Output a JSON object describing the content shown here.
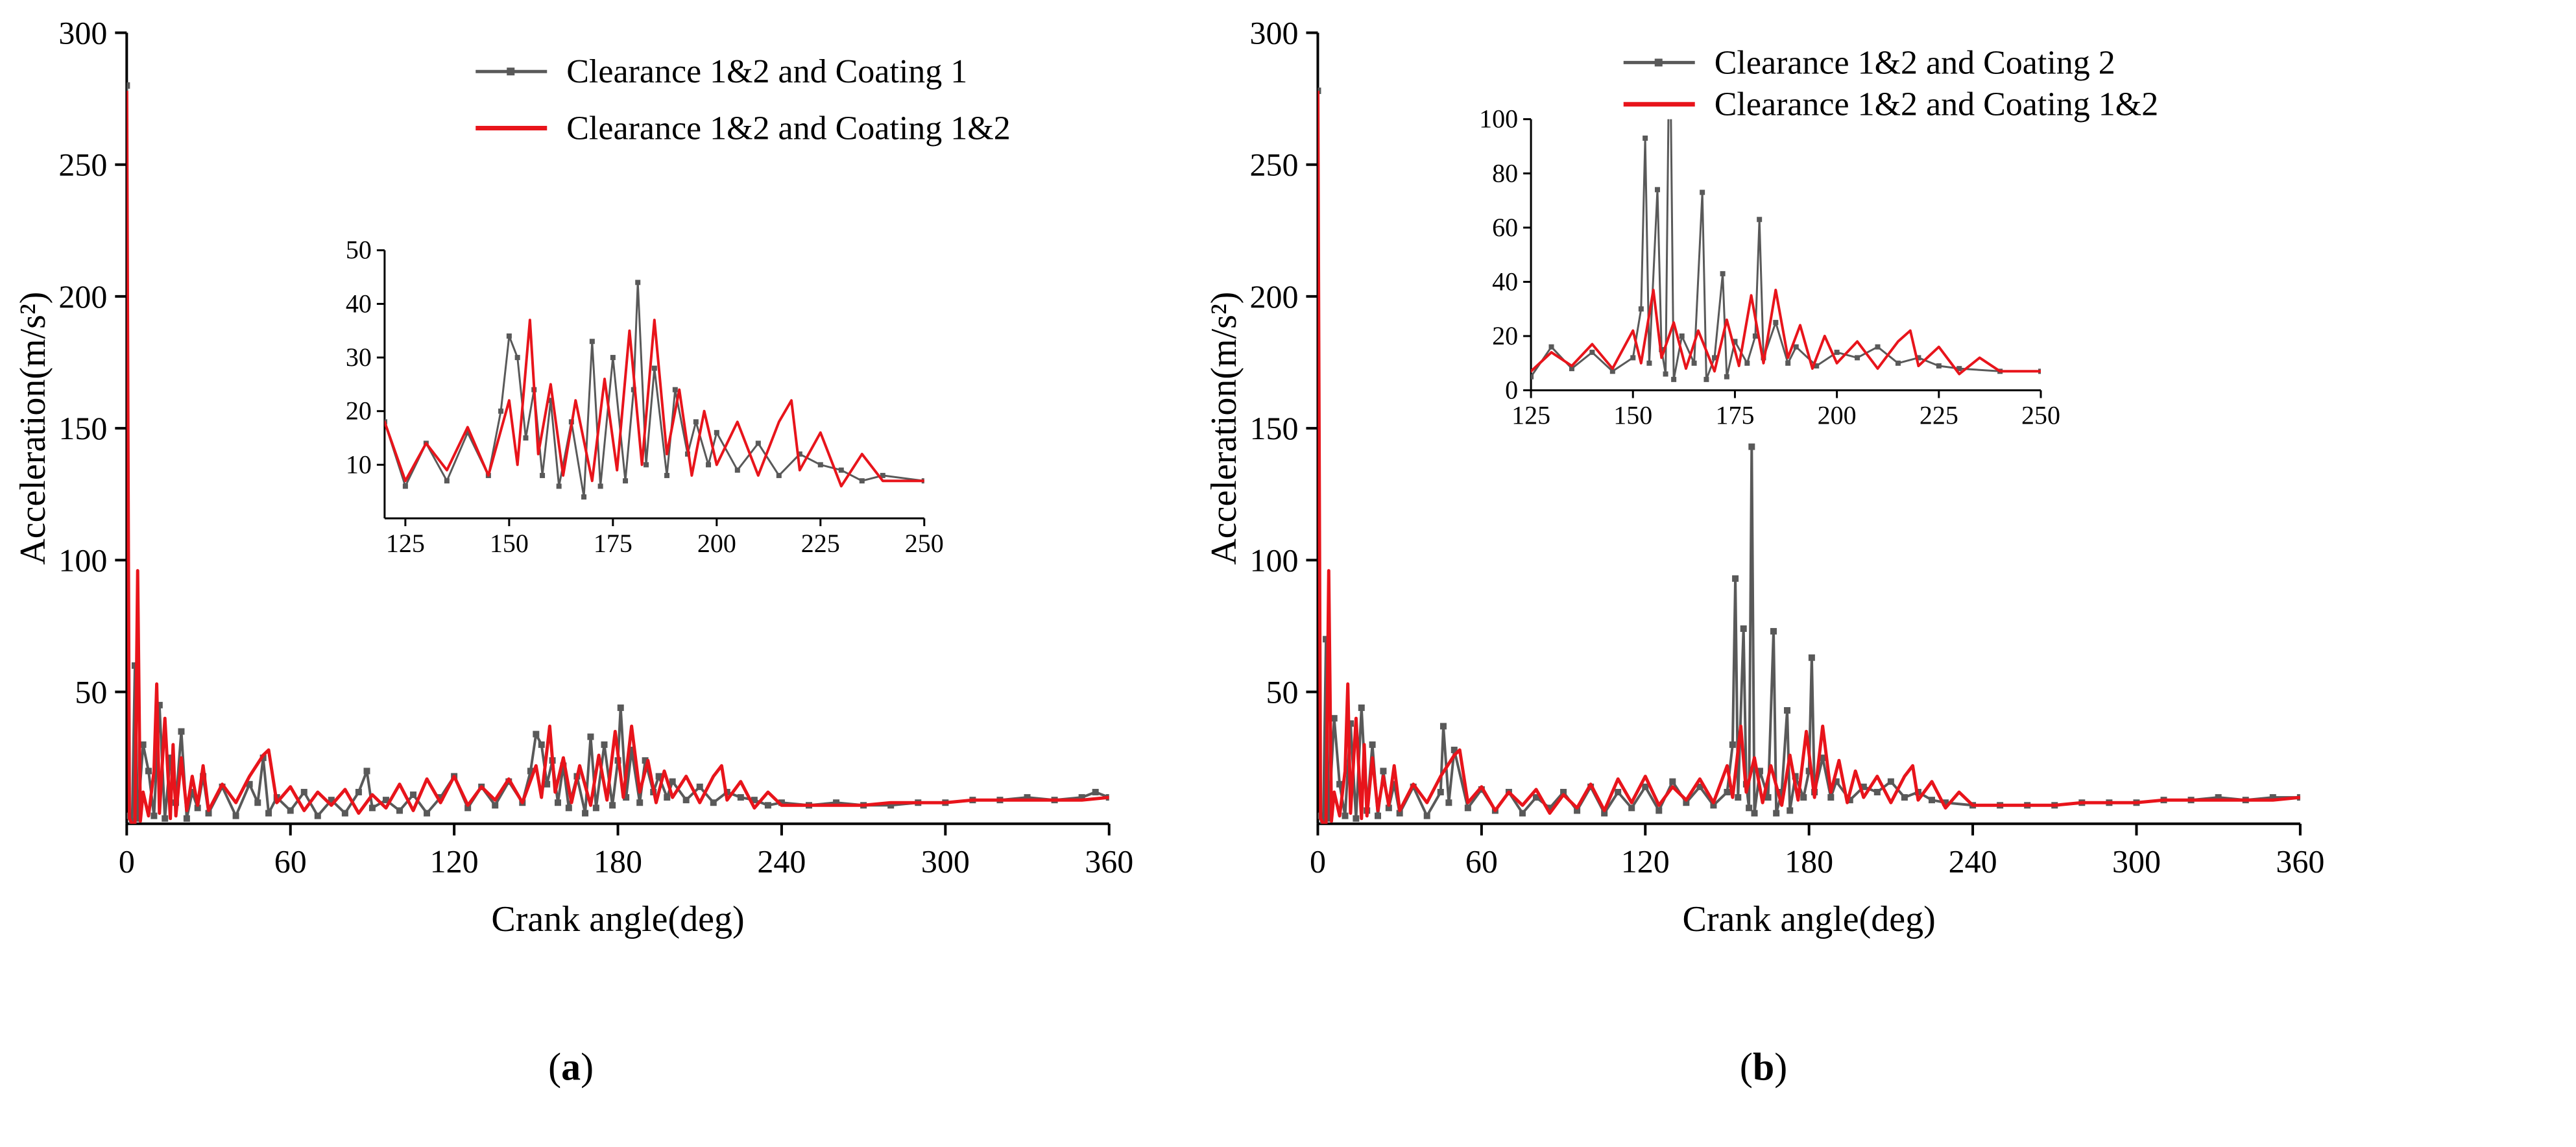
{
  "colors": {
    "gray_series": "#595959",
    "red_series": "#e8141b",
    "axis": "#000000"
  },
  "chart_data": [
    {
      "type": "line",
      "panel_label": "(a)",
      "panel_letter": "a",
      "xlabel": "Crank angle(deg)",
      "ylabel": "Acceleration(m/s²)",
      "xlim": [
        0,
        360
      ],
      "ylim": [
        0,
        300
      ],
      "xticks": [
        0,
        60,
        120,
        180,
        240,
        300,
        360
      ],
      "yticks": [
        50,
        100,
        150,
        200,
        250,
        300
      ],
      "legend": [
        "Clearance 1&2 and Coating 1",
        "Clearance 1&2 and Coating 1&2"
      ],
      "series": [
        {
          "name": "Clearance 1&2 and Coating 1",
          "color": "#595959",
          "marker": "square",
          "x": [
            0,
            1,
            2,
            3,
            4,
            6,
            8,
            10,
            12,
            14,
            16,
            18,
            20,
            22,
            24,
            26,
            28,
            30,
            35,
            40,
            45,
            48,
            50,
            52,
            55,
            60,
            65,
            70,
            75,
            80,
            85,
            88,
            90,
            95,
            100,
            105,
            110,
            115,
            120,
            125,
            130,
            135,
            140,
            145,
            148,
            150,
            152,
            154,
            156,
            158,
            160,
            162,
            165,
            168,
            170,
            172,
            175,
            178,
            180,
            181,
            183,
            185,
            188,
            190,
            193,
            195,
            198,
            200,
            205,
            210,
            215,
            220,
            225,
            230,
            235,
            240,
            250,
            260,
            270,
            280,
            290,
            300,
            310,
            320,
            330,
            340,
            350,
            355,
            360
          ],
          "values": [
            280,
            3,
            1,
            60,
            2,
            30,
            20,
            3,
            45,
            2,
            25,
            8,
            35,
            2,
            12,
            6,
            18,
            4,
            14,
            3,
            15,
            8,
            25,
            4,
            10,
            5,
            12,
            3,
            9,
            4,
            12,
            20,
            6,
            9,
            5,
            11,
            4,
            10,
            18,
            6,
            14,
            7,
            16,
            8,
            20,
            34,
            30,
            15,
            24,
            8,
            22,
            6,
            18,
            4,
            33,
            6,
            30,
            7,
            24,
            44,
            10,
            28,
            8,
            24,
            12,
            18,
            10,
            16,
            9,
            14,
            8,
            12,
            10,
            9,
            7,
            8,
            7,
            8,
            7,
            7,
            8,
            8,
            9,
            9,
            10,
            9,
            10,
            12,
            10
          ]
        },
        {
          "name": "Clearance 1&2 and Coating 1&2",
          "color": "#e8141b",
          "marker": "none",
          "x": [
            0,
            1,
            2,
            3,
            4,
            5,
            6,
            8,
            10,
            11,
            12,
            14,
            16,
            17,
            18,
            20,
            22,
            24,
            26,
            28,
            30,
            35,
            40,
            45,
            50,
            52,
            55,
            60,
            65,
            70,
            75,
            80,
            85,
            90,
            95,
            100,
            105,
            110,
            115,
            120,
            125,
            130,
            135,
            140,
            145,
            150,
            152,
            155,
            157,
            160,
            163,
            166,
            170,
            173,
            176,
            179,
            182,
            185,
            188,
            191,
            194,
            197,
            200,
            205,
            210,
            215,
            218,
            220,
            225,
            230,
            235,
            240,
            250,
            260,
            270,
            280,
            290,
            300,
            310,
            320,
            330,
            340,
            350,
            360
          ],
          "values": [
            278,
            2,
            0,
            0,
            96,
            1,
            12,
            3,
            20,
            53,
            4,
            40,
            2,
            30,
            3,
            25,
            5,
            18,
            7,
            22,
            5,
            15,
            8,
            18,
            26,
            28,
            8,
            14,
            5,
            12,
            7,
            13,
            4,
            11,
            6,
            15,
            5,
            17,
            8,
            18,
            7,
            14,
            9,
            17,
            8,
            22,
            10,
            37,
            12,
            25,
            8,
            22,
            7,
            26,
            9,
            35,
            10,
            37,
            12,
            24,
            8,
            20,
            10,
            18,
            8,
            18,
            22,
            9,
            16,
            6,
            12,
            7,
            7,
            7,
            7,
            8,
            8,
            8,
            9,
            9,
            9,
            9,
            9,
            10
          ]
        }
      ],
      "inset": {
        "xlim": [
          120,
          250
        ],
        "ylim": [
          0,
          50
        ],
        "xticks": [
          125,
          150,
          175,
          200,
          225,
          250
        ],
        "yticks": [
          10,
          20,
          30,
          40,
          50
        ]
      }
    },
    {
      "type": "line",
      "panel_label": "(b)",
      "panel_letter": "b",
      "xlabel": "Crank angle(deg)",
      "ylabel": "Acceleration(m/s²)",
      "xlim": [
        0,
        360
      ],
      "ylim": [
        0,
        300
      ],
      "xticks": [
        0,
        60,
        120,
        180,
        240,
        300,
        360
      ],
      "yticks": [
        50,
        100,
        150,
        200,
        250,
        300
      ],
      "legend": [
        "Clearance 1&2 and Coating 2",
        "Clearance 1&2 and Coating 1&2"
      ],
      "series": [
        {
          "name": "Clearance 1&2 and Coating 2",
          "color": "#595959",
          "marker": "square",
          "x": [
            0,
            1,
            2,
            3,
            4,
            6,
            8,
            10,
            12,
            14,
            16,
            18,
            20,
            22,
            24,
            26,
            28,
            30,
            35,
            40,
            45,
            46,
            48,
            50,
            55,
            60,
            65,
            70,
            75,
            80,
            85,
            90,
            95,
            100,
            105,
            110,
            115,
            120,
            125,
            130,
            135,
            140,
            145,
            150,
            152,
            153,
            154,
            156,
            157,
            158,
            159,
            160,
            162,
            165,
            167,
            168,
            170,
            172,
            173,
            175,
            178,
            180,
            181,
            182,
            185,
            188,
            190,
            195,
            200,
            205,
            210,
            215,
            220,
            225,
            230,
            240,
            250,
            260,
            270,
            280,
            290,
            300,
            310,
            320,
            330,
            340,
            350,
            360
          ],
          "values": [
            278,
            3,
            1,
            70,
            2,
            40,
            15,
            3,
            38,
            2,
            44,
            5,
            30,
            3,
            20,
            6,
            15,
            4,
            14,
            3,
            12,
            37,
            8,
            28,
            6,
            13,
            5,
            12,
            4,
            10,
            6,
            12,
            5,
            14,
            4,
            12,
            6,
            14,
            5,
            16,
            8,
            14,
            7,
            12,
            30,
            93,
            10,
            74,
            15,
            6,
            143,
            4,
            20,
            10,
            73,
            4,
            12,
            43,
            5,
            18,
            10,
            20,
            63,
            12,
            25,
            10,
            16,
            9,
            14,
            12,
            16,
            10,
            12,
            9,
            8,
            7,
            7,
            7,
            7,
            8,
            8,
            8,
            9,
            9,
            10,
            9,
            10,
            10
          ]
        },
        {
          "name": "Clearance 1&2 and Coating 1&2",
          "color": "#e8141b",
          "marker": "none",
          "x": [
            0,
            1,
            2,
            3,
            4,
            5,
            6,
            8,
            10,
            11,
            12,
            14,
            16,
            17,
            18,
            20,
            22,
            24,
            26,
            28,
            30,
            35,
            40,
            45,
            50,
            52,
            55,
            60,
            65,
            70,
            75,
            80,
            85,
            90,
            95,
            100,
            105,
            110,
            115,
            120,
            125,
            130,
            135,
            140,
            145,
            150,
            152,
            155,
            157,
            160,
            163,
            166,
            170,
            173,
            176,
            179,
            182,
            185,
            188,
            191,
            194,
            197,
            200,
            205,
            210,
            215,
            218,
            220,
            225,
            230,
            235,
            240,
            250,
            260,
            270,
            280,
            290,
            300,
            310,
            320,
            330,
            340,
            350,
            360
          ],
          "values": [
            278,
            2,
            0,
            0,
            96,
            1,
            12,
            3,
            20,
            53,
            4,
            40,
            2,
            30,
            3,
            25,
            5,
            18,
            7,
            22,
            5,
            15,
            8,
            18,
            26,
            28,
            8,
            14,
            5,
            12,
            7,
            13,
            4,
            11,
            6,
            15,
            5,
            17,
            8,
            18,
            7,
            14,
            9,
            17,
            8,
            22,
            10,
            37,
            12,
            25,
            8,
            22,
            7,
            26,
            9,
            35,
            10,
            37,
            12,
            24,
            8,
            20,
            10,
            18,
            8,
            18,
            22,
            9,
            16,
            6,
            12,
            7,
            7,
            7,
            7,
            8,
            8,
            8,
            9,
            9,
            9,
            9,
            9,
            10
          ]
        }
      ],
      "inset": {
        "xlim": [
          125,
          250
        ],
        "ylim": [
          0,
          100
        ],
        "xticks": [
          125,
          150,
          175,
          200,
          225,
          250
        ],
        "yticks": [
          0,
          20,
          40,
          60,
          80,
          100
        ]
      }
    }
  ]
}
